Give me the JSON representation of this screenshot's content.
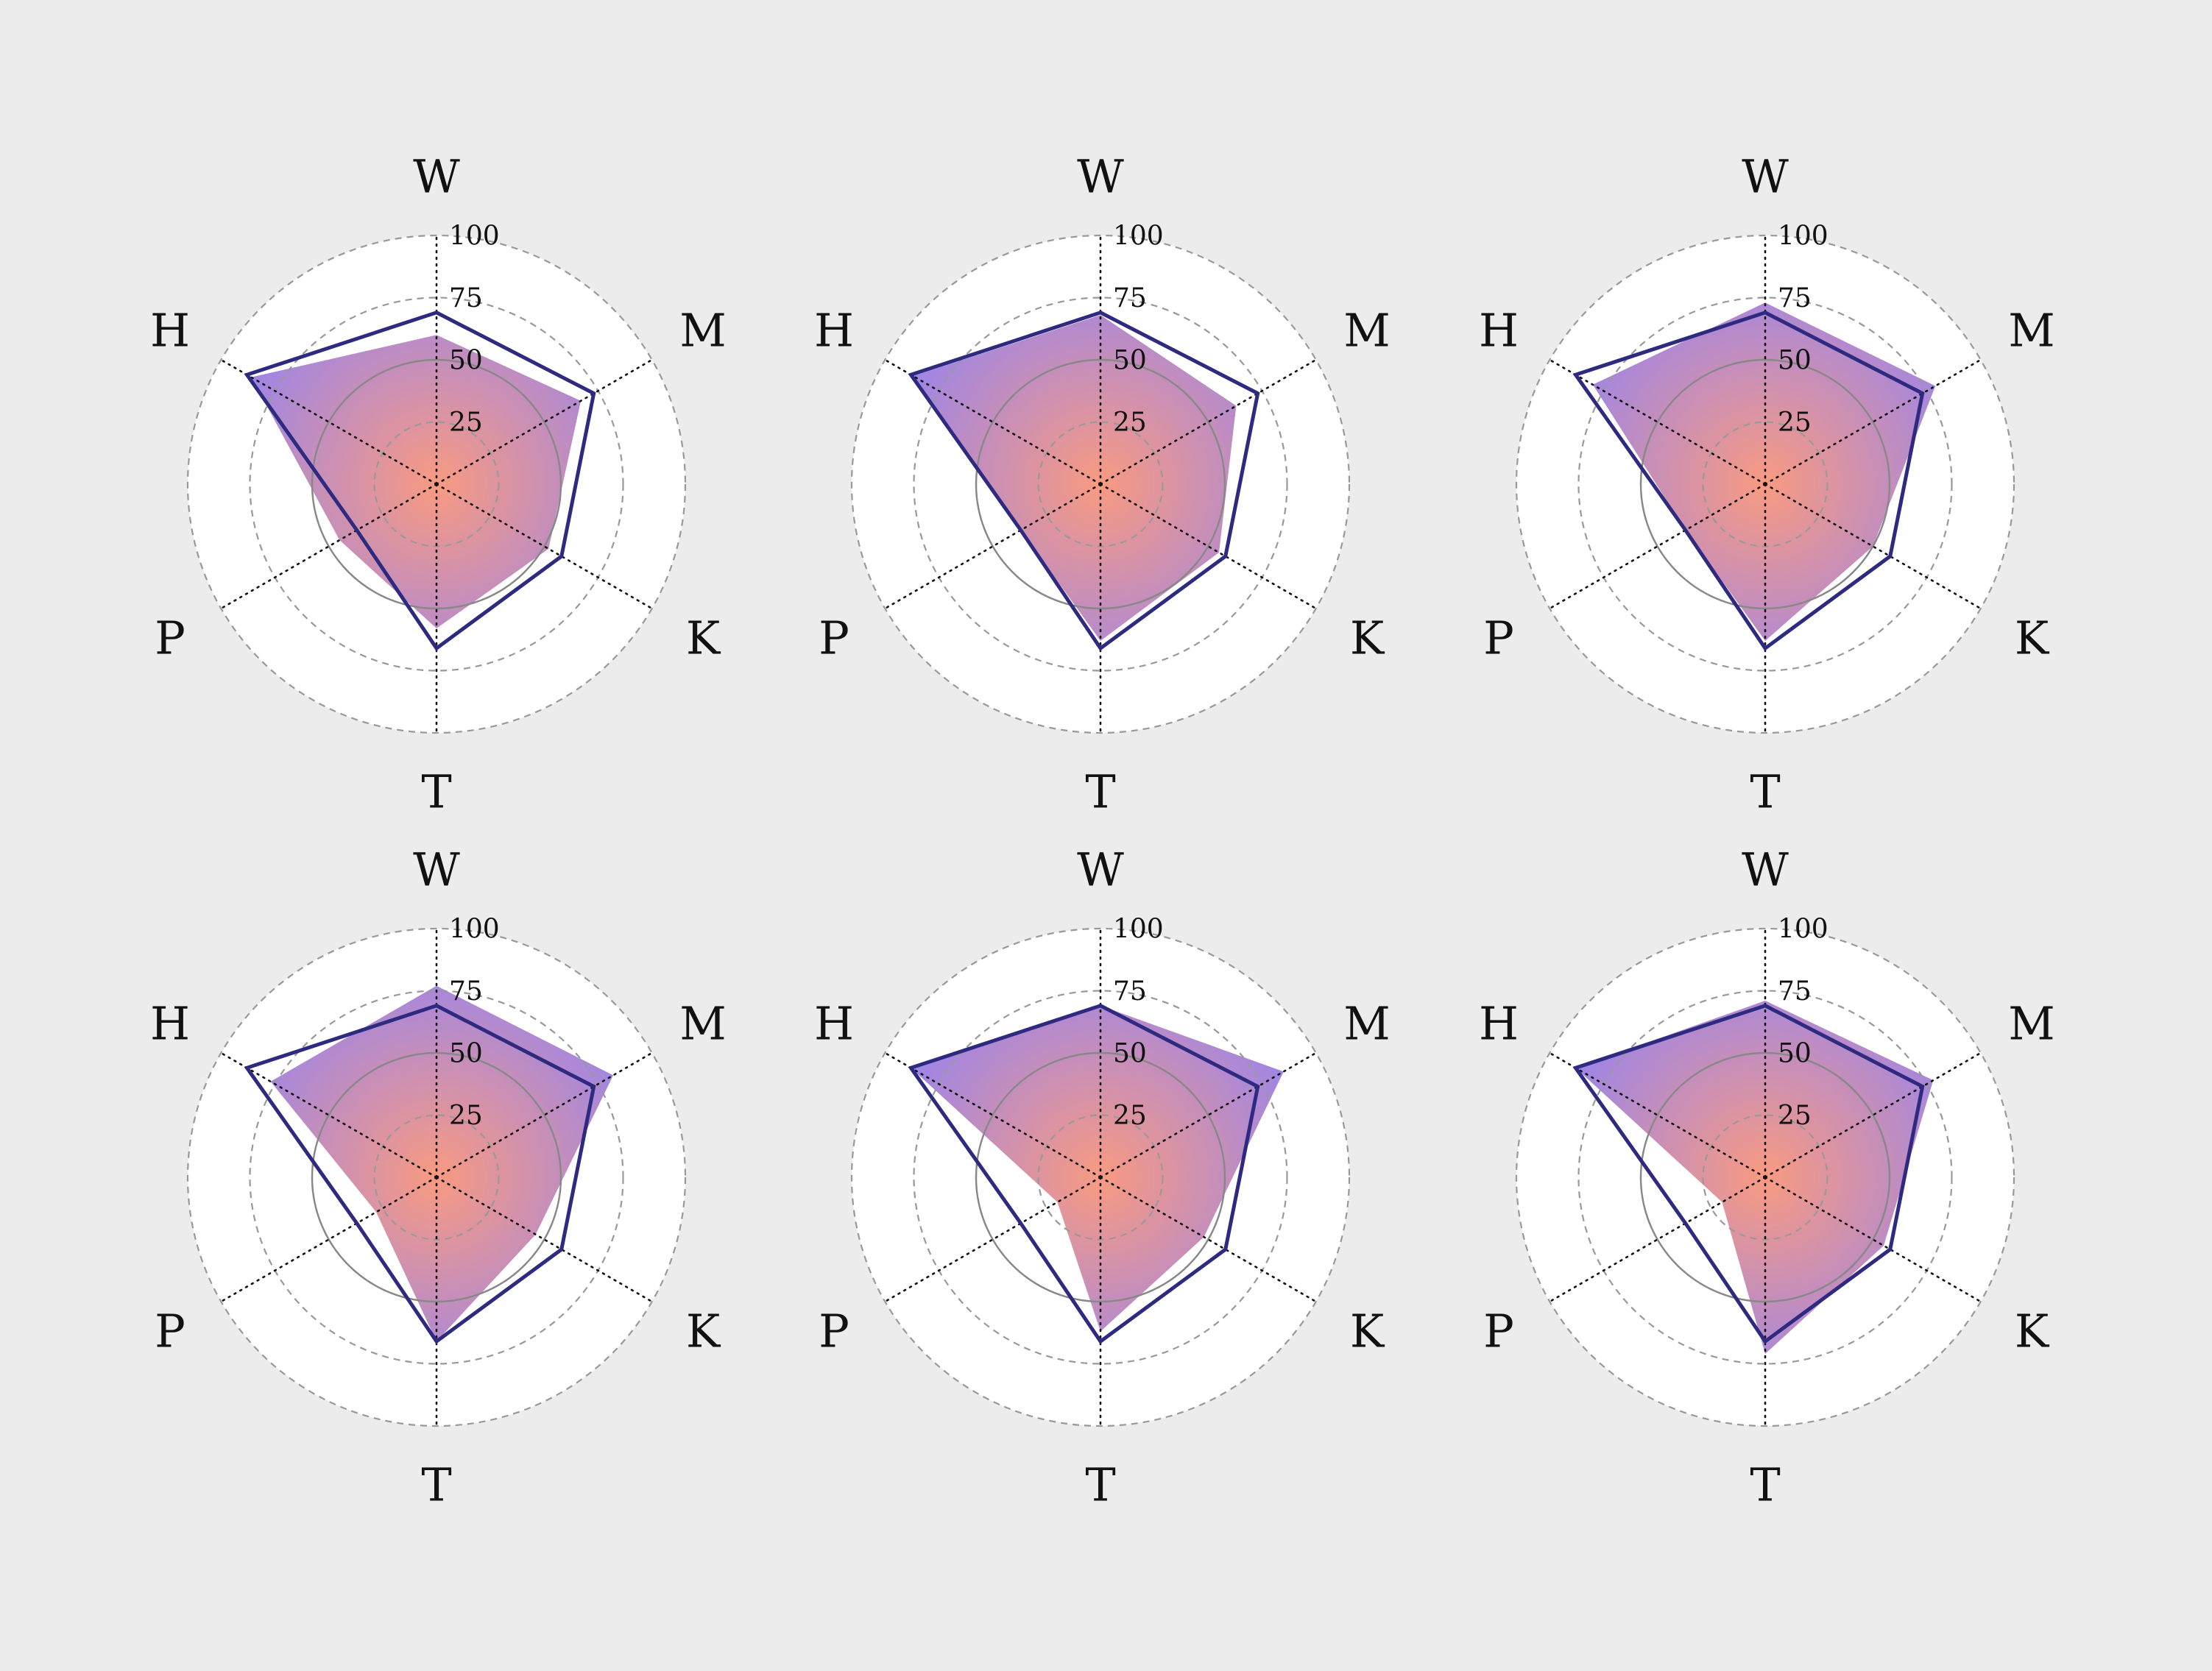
{
  "chart_data": {
    "type": "radar",
    "axes": [
      "W",
      "M",
      "K",
      "T",
      "P",
      "H"
    ],
    "rlim": [
      0,
      100
    ],
    "rticks": [
      25,
      50,
      75,
      100
    ],
    "rtick_labels": [
      "25",
      "50",
      "75",
      "100"
    ],
    "grid": true,
    "colors": {
      "outline": "#2e2a80",
      "fill_center": "#f8957a",
      "fill_edge": "#8f7cf0",
      "grid_circle": "#999999",
      "inner_circle": "#888888",
      "spoke": "#111111",
      "plot_background": "#ffffff",
      "figure_background": "#ececec"
    },
    "panels": [
      {
        "outline": [
          69,
          73,
          58,
          66,
          37,
          88
        ],
        "fill": [
          60,
          67,
          52,
          58,
          45,
          86
        ]
      },
      {
        "outline": [
          69,
          73,
          58,
          66,
          37,
          88
        ],
        "fill": [
          68,
          63,
          55,
          63,
          37,
          87
        ]
      },
      {
        "outline": [
          69,
          73,
          58,
          66,
          37,
          88
        ],
        "fill": [
          73,
          79,
          50,
          63,
          37,
          80
        ]
      },
      {
        "outline": [
          69,
          73,
          58,
          66,
          37,
          88
        ],
        "fill": [
          77,
          82,
          46,
          66,
          28,
          77
        ]
      },
      {
        "outline": [
          69,
          73,
          58,
          66,
          37,
          88
        ],
        "fill": [
          69,
          85,
          48,
          62,
          20,
          88
        ]
      },
      {
        "outline": [
          69,
          73,
          58,
          66,
          37,
          88
        ],
        "fill": [
          71,
          78,
          55,
          71,
          20,
          88
        ]
      }
    ]
  }
}
